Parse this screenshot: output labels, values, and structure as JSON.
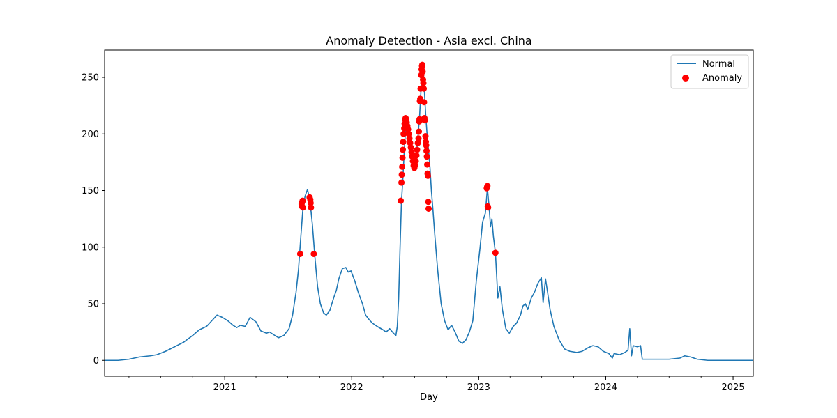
{
  "chart_data": {
    "type": "line",
    "title": "Anomaly Detection - Asia excl. China",
    "xlabel": "Day",
    "ylabel": "",
    "x_ticks": [
      "2021",
      "2022",
      "2023",
      "2024",
      "2025"
    ],
    "y_ticks": [
      0,
      50,
      100,
      150,
      200,
      250
    ],
    "xlim": [
      "2020-01-22",
      "2025-02-28"
    ],
    "ylim": [
      -14,
      274
    ],
    "grid": false,
    "legend": {
      "placement": "top-right",
      "items": [
        "Normal",
        "Anomaly"
      ]
    },
    "colors": {
      "normal": "#1f77b4",
      "anomaly": "#ff0000"
    },
    "series": [
      {
        "name": "Normal",
        "kind": "line",
        "points": [
          [
            "2020-01-22",
            0
          ],
          [
            "2020-03-01",
            0
          ],
          [
            "2020-04-01",
            1
          ],
          [
            "2020-05-01",
            3
          ],
          [
            "2020-06-01",
            4
          ],
          [
            "2020-06-20",
            5
          ],
          [
            "2020-07-15",
            8
          ],
          [
            "2020-08-10",
            12
          ],
          [
            "2020-09-05",
            16
          ],
          [
            "2020-10-01",
            22
          ],
          [
            "2020-10-20",
            27
          ],
          [
            "2020-11-10",
            30
          ],
          [
            "2020-11-25",
            35
          ],
          [
            "2020-12-10",
            40
          ],
          [
            "2020-12-25",
            38
          ],
          [
            "2021-01-10",
            35
          ],
          [
            "2021-01-25",
            31
          ],
          [
            "2021-02-05",
            29
          ],
          [
            "2021-02-15",
            31
          ],
          [
            "2021-03-01",
            30
          ],
          [
            "2021-03-15",
            38
          ],
          [
            "2021-04-01",
            34
          ],
          [
            "2021-04-15",
            26
          ],
          [
            "2021-05-01",
            24
          ],
          [
            "2021-05-10",
            25
          ],
          [
            "2021-05-25",
            22
          ],
          [
            "2021-06-05",
            20
          ],
          [
            "2021-06-20",
            22
          ],
          [
            "2021-07-05",
            28
          ],
          [
            "2021-07-15",
            40
          ],
          [
            "2021-07-25",
            60
          ],
          [
            "2021-08-01",
            80
          ],
          [
            "2021-08-08",
            110
          ],
          [
            "2021-08-14",
            135
          ],
          [
            "2021-08-20",
            145
          ],
          [
            "2021-08-27",
            151
          ],
          [
            "2021-09-03",
            141
          ],
          [
            "2021-09-10",
            120
          ],
          [
            "2021-09-17",
            92
          ],
          [
            "2021-09-25",
            65
          ],
          [
            "2021-10-03",
            50
          ],
          [
            "2021-10-12",
            42
          ],
          [
            "2021-10-20",
            40
          ],
          [
            "2021-10-30",
            44
          ],
          [
            "2021-11-10",
            55
          ],
          [
            "2021-11-18",
            62
          ],
          [
            "2021-11-25",
            72
          ],
          [
            "2021-12-05",
            81
          ],
          [
            "2021-12-15",
            82
          ],
          [
            "2021-12-22",
            78
          ],
          [
            "2021-12-30",
            79
          ],
          [
            "2022-01-10",
            70
          ],
          [
            "2022-01-20",
            60
          ],
          [
            "2022-02-01",
            50
          ],
          [
            "2022-02-10",
            40
          ],
          [
            "2022-02-20",
            36
          ],
          [
            "2022-03-01",
            33
          ],
          [
            "2022-03-15",
            30
          ],
          [
            "2022-04-01",
            27
          ],
          [
            "2022-04-10",
            25
          ],
          [
            "2022-04-20",
            28
          ],
          [
            "2022-05-01",
            24
          ],
          [
            "2022-05-08",
            22
          ],
          [
            "2022-05-12",
            30
          ],
          [
            "2022-05-16",
            55
          ],
          [
            "2022-05-20",
            100
          ],
          [
            "2022-05-24",
            140
          ],
          [
            "2022-05-28",
            160
          ],
          [
            "2022-06-01",
            185
          ],
          [
            "2022-06-05",
            205
          ],
          [
            "2022-06-09",
            214
          ],
          [
            "2022-06-13",
            210
          ],
          [
            "2022-06-17",
            200
          ],
          [
            "2022-06-21",
            190
          ],
          [
            "2022-06-25",
            178
          ],
          [
            "2022-06-29",
            171
          ],
          [
            "2022-07-03",
            175
          ],
          [
            "2022-07-07",
            185
          ],
          [
            "2022-07-11",
            200
          ],
          [
            "2022-07-15",
            215
          ],
          [
            "2022-07-18",
            232
          ],
          [
            "2022-07-21",
            250
          ],
          [
            "2022-07-24",
            260
          ],
          [
            "2022-07-27",
            250
          ],
          [
            "2022-07-30",
            232
          ],
          [
            "2022-08-02",
            215
          ],
          [
            "2022-08-06",
            198
          ],
          [
            "2022-08-10",
            185
          ],
          [
            "2022-08-14",
            170
          ],
          [
            "2022-08-18",
            150
          ],
          [
            "2022-08-22",
            135
          ],
          [
            "2022-08-28",
            110
          ],
          [
            "2022-09-05",
            80
          ],
          [
            "2022-09-15",
            50
          ],
          [
            "2022-09-25",
            35
          ],
          [
            "2022-10-05",
            27
          ],
          [
            "2022-10-15",
            31
          ],
          [
            "2022-10-25",
            25
          ],
          [
            "2022-11-05",
            17
          ],
          [
            "2022-11-15",
            15
          ],
          [
            "2022-11-25",
            18
          ],
          [
            "2022-12-05",
            25
          ],
          [
            "2022-12-15",
            35
          ],
          [
            "2022-12-25",
            70
          ],
          [
            "2023-01-05",
            100
          ],
          [
            "2023-01-12",
            122
          ],
          [
            "2023-01-20",
            130
          ],
          [
            "2023-01-26",
            152
          ],
          [
            "2023-01-31",
            135
          ],
          [
            "2023-02-04",
            118
          ],
          [
            "2023-02-08",
            125
          ],
          [
            "2023-02-12",
            110
          ],
          [
            "2023-02-18",
            95
          ],
          [
            "2023-02-25",
            55
          ],
          [
            "2023-03-03",
            65
          ],
          [
            "2023-03-10",
            45
          ],
          [
            "2023-03-20",
            28
          ],
          [
            "2023-03-30",
            24
          ],
          [
            "2023-04-10",
            30
          ],
          [
            "2023-04-20",
            33
          ],
          [
            "2023-05-01",
            40
          ],
          [
            "2023-05-08",
            48
          ],
          [
            "2023-05-15",
            50
          ],
          [
            "2023-05-22",
            45
          ],
          [
            "2023-06-01",
            55
          ],
          [
            "2023-06-10",
            60
          ],
          [
            "2023-06-20",
            68
          ],
          [
            "2023-06-30",
            73
          ],
          [
            "2023-07-05",
            51
          ],
          [
            "2023-07-12",
            72
          ],
          [
            "2023-07-18",
            60
          ],
          [
            "2023-07-25",
            45
          ],
          [
            "2023-08-05",
            30
          ],
          [
            "2023-08-20",
            18
          ],
          [
            "2023-09-05",
            10
          ],
          [
            "2023-09-20",
            8
          ],
          [
            "2023-10-10",
            7
          ],
          [
            "2023-10-25",
            8
          ],
          [
            "2023-11-10",
            11
          ],
          [
            "2023-11-25",
            13
          ],
          [
            "2023-12-10",
            12
          ],
          [
            "2023-12-25",
            8
          ],
          [
            "2024-01-10",
            6
          ],
          [
            "2024-01-20",
            2
          ],
          [
            "2024-01-25",
            6
          ],
          [
            "2024-02-10",
            5
          ],
          [
            "2024-02-25",
            7
          ],
          [
            "2024-03-05",
            9
          ],
          [
            "2024-03-10",
            28
          ],
          [
            "2024-03-15",
            4
          ],
          [
            "2024-03-20",
            13
          ],
          [
            "2024-04-01",
            12
          ],
          [
            "2024-04-10",
            13
          ],
          [
            "2024-04-15",
            1
          ],
          [
            "2024-05-01",
            1
          ],
          [
            "2024-06-01",
            1
          ],
          [
            "2024-07-01",
            1
          ],
          [
            "2024-08-01",
            2
          ],
          [
            "2024-08-15",
            4
          ],
          [
            "2024-09-01",
            3
          ],
          [
            "2024-09-20",
            1
          ],
          [
            "2024-10-20",
            0
          ],
          [
            "2025-01-01",
            0
          ],
          [
            "2025-02-28",
            0
          ]
        ]
      },
      {
        "name": "Anomaly",
        "kind": "scatter",
        "points": [
          [
            "2021-08-06",
            94
          ],
          [
            "2021-08-10",
            138
          ],
          [
            "2021-08-11",
            136
          ],
          [
            "2021-08-12",
            140
          ],
          [
            "2021-08-13",
            141
          ],
          [
            "2021-08-14",
            135
          ],
          [
            "2021-09-02",
            144
          ],
          [
            "2021-09-04",
            142
          ],
          [
            "2021-09-05",
            139
          ],
          [
            "2021-09-06",
            135
          ],
          [
            "2021-09-14",
            94
          ],
          [
            "2022-05-22",
            141
          ],
          [
            "2022-05-24",
            157
          ],
          [
            "2022-05-25",
            164
          ],
          [
            "2022-05-26",
            171
          ],
          [
            "2022-05-27",
            179
          ],
          [
            "2022-05-28",
            186
          ],
          [
            "2022-05-29",
            193
          ],
          [
            "2022-05-30",
            200
          ],
          [
            "2022-06-01",
            205
          ],
          [
            "2022-06-02",
            209
          ],
          [
            "2022-06-04",
            213
          ],
          [
            "2022-06-05",
            214
          ],
          [
            "2022-06-06",
            213
          ],
          [
            "2022-06-08",
            210
          ],
          [
            "2022-06-10",
            207
          ],
          [
            "2022-06-12",
            204
          ],
          [
            "2022-06-14",
            200
          ],
          [
            "2022-06-16",
            196
          ],
          [
            "2022-06-18",
            192
          ],
          [
            "2022-06-20",
            188
          ],
          [
            "2022-06-22",
            184
          ],
          [
            "2022-06-24",
            180
          ],
          [
            "2022-06-26",
            176
          ],
          [
            "2022-06-28",
            172
          ],
          [
            "2022-06-30",
            170
          ],
          [
            "2022-07-02",
            172
          ],
          [
            "2022-07-04",
            176
          ],
          [
            "2022-07-06",
            181
          ],
          [
            "2022-07-08",
            186
          ],
          [
            "2022-07-10",
            192
          ],
          [
            "2022-07-12",
            196
          ],
          [
            "2022-07-13",
            202
          ],
          [
            "2022-07-14",
            211
          ],
          [
            "2022-07-15",
            213
          ],
          [
            "2022-07-16",
            229
          ],
          [
            "2022-07-17",
            231
          ],
          [
            "2022-07-18",
            240
          ],
          [
            "2022-07-20",
            252
          ],
          [
            "2022-07-21",
            257
          ],
          [
            "2022-07-22",
            260
          ],
          [
            "2022-07-23",
            261
          ],
          [
            "2022-07-24",
            255
          ],
          [
            "2022-07-25",
            248
          ],
          [
            "2022-07-26",
            245
          ],
          [
            "2022-07-27",
            240
          ],
          [
            "2022-07-28",
            228
          ],
          [
            "2022-07-29",
            214
          ],
          [
            "2022-07-30",
            212
          ],
          [
            "2022-08-01",
            198
          ],
          [
            "2022-08-02",
            193
          ],
          [
            "2022-08-03",
            190
          ],
          [
            "2022-08-04",
            185
          ],
          [
            "2022-08-05",
            180
          ],
          [
            "2022-08-06",
            173
          ],
          [
            "2022-08-07",
            165
          ],
          [
            "2022-08-08",
            163
          ],
          [
            "2022-08-09",
            140
          ],
          [
            "2022-08-10",
            134
          ],
          [
            "2023-01-24",
            152
          ],
          [
            "2023-01-25",
            153
          ],
          [
            "2023-01-26",
            154
          ],
          [
            "2023-01-27",
            136
          ],
          [
            "2023-01-28",
            135
          ],
          [
            "2023-02-18",
            95
          ]
        ]
      }
    ]
  }
}
